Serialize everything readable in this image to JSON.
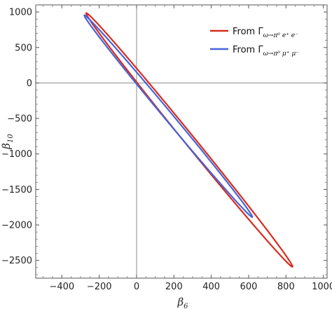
{
  "chart_data": {
    "type": "line",
    "title": "",
    "xlabel": "β",
    "xlabel_sub": "6",
    "ylabel": "β",
    "ylabel_sub": "10",
    "xlim": [
      -540,
      1020
    ],
    "ylim": [
      -2750,
      1100
    ],
    "x_ticks": [
      -400,
      -200,
      0,
      200,
      400,
      600,
      800,
      1000
    ],
    "x_tick_labels": [
      "−400",
      "−200",
      "0",
      "200",
      "400",
      "600",
      "800",
      "1000"
    ],
    "y_ticks": [
      1000,
      500,
      0,
      -500,
      -1000,
      -1500,
      -2000,
      -2500
    ],
    "y_tick_labels": [
      "1000",
      "500",
      "0",
      "−500",
      "−1000",
      "−1500",
      "−2000",
      "−2500"
    ],
    "grid": false,
    "legend_position": "top-right",
    "series": [
      {
        "name": "From Γ",
        "name_sub": "ω→π⁰ e⁺ e⁻",
        "color": "#d62d1e",
        "shape": "ellipse",
        "x_extremes": [
          -270,
          835
        ],
        "y_extremes": [
          -2590,
          985
        ],
        "points": [
          [
            -270,
            985
          ],
          [
            -200,
            600
          ],
          [
            0,
            250
          ],
          [
            300,
            -300
          ],
          [
            600,
            -1250
          ],
          [
            835,
            -2590
          ],
          [
            700,
            -2250
          ],
          [
            400,
            -1450
          ],
          [
            100,
            -600
          ],
          [
            -100,
            -50
          ],
          [
            -265,
            920
          ]
        ]
      },
      {
        "name": "From Γ",
        "name_sub": "ω→π⁰ μ⁺ μ⁻",
        "color": "#4a63d8",
        "shape": "ellipse",
        "x_extremes": [
          -280,
          620
        ],
        "y_extremes": [
          -1890,
          955
        ],
        "points": [
          [
            -280,
            955
          ],
          [
            -100,
            400
          ],
          [
            50,
            80
          ],
          [
            350,
            -700
          ],
          [
            620,
            -1890
          ],
          [
            450,
            -1350
          ],
          [
            150,
            -500
          ],
          [
            -10,
            -50
          ],
          [
            -275,
            905
          ]
        ]
      }
    ]
  }
}
